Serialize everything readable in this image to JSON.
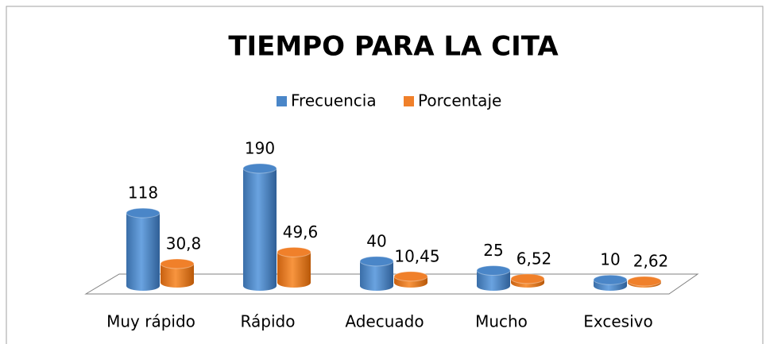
{
  "chart_data": {
    "type": "bar3d",
    "title": "TIEMPO PARA LA CITA",
    "categories": [
      "Muy rápido",
      "Rápido",
      "Adecuado",
      "Mucho",
      "Excesivo"
    ],
    "series": [
      {
        "name": "Frecuencia",
        "color": "#4a86c8",
        "values": [
          118,
          190,
          40,
          25,
          10
        ]
      },
      {
        "name": "Porcentaje",
        "color": "#f0802a",
        "values": [
          30.8,
          49.6,
          10.45,
          6.52,
          2.62
        ],
        "value_labels": [
          "30,8",
          "49,6",
          "10,45",
          "6,52",
          "2,62"
        ]
      }
    ]
  }
}
